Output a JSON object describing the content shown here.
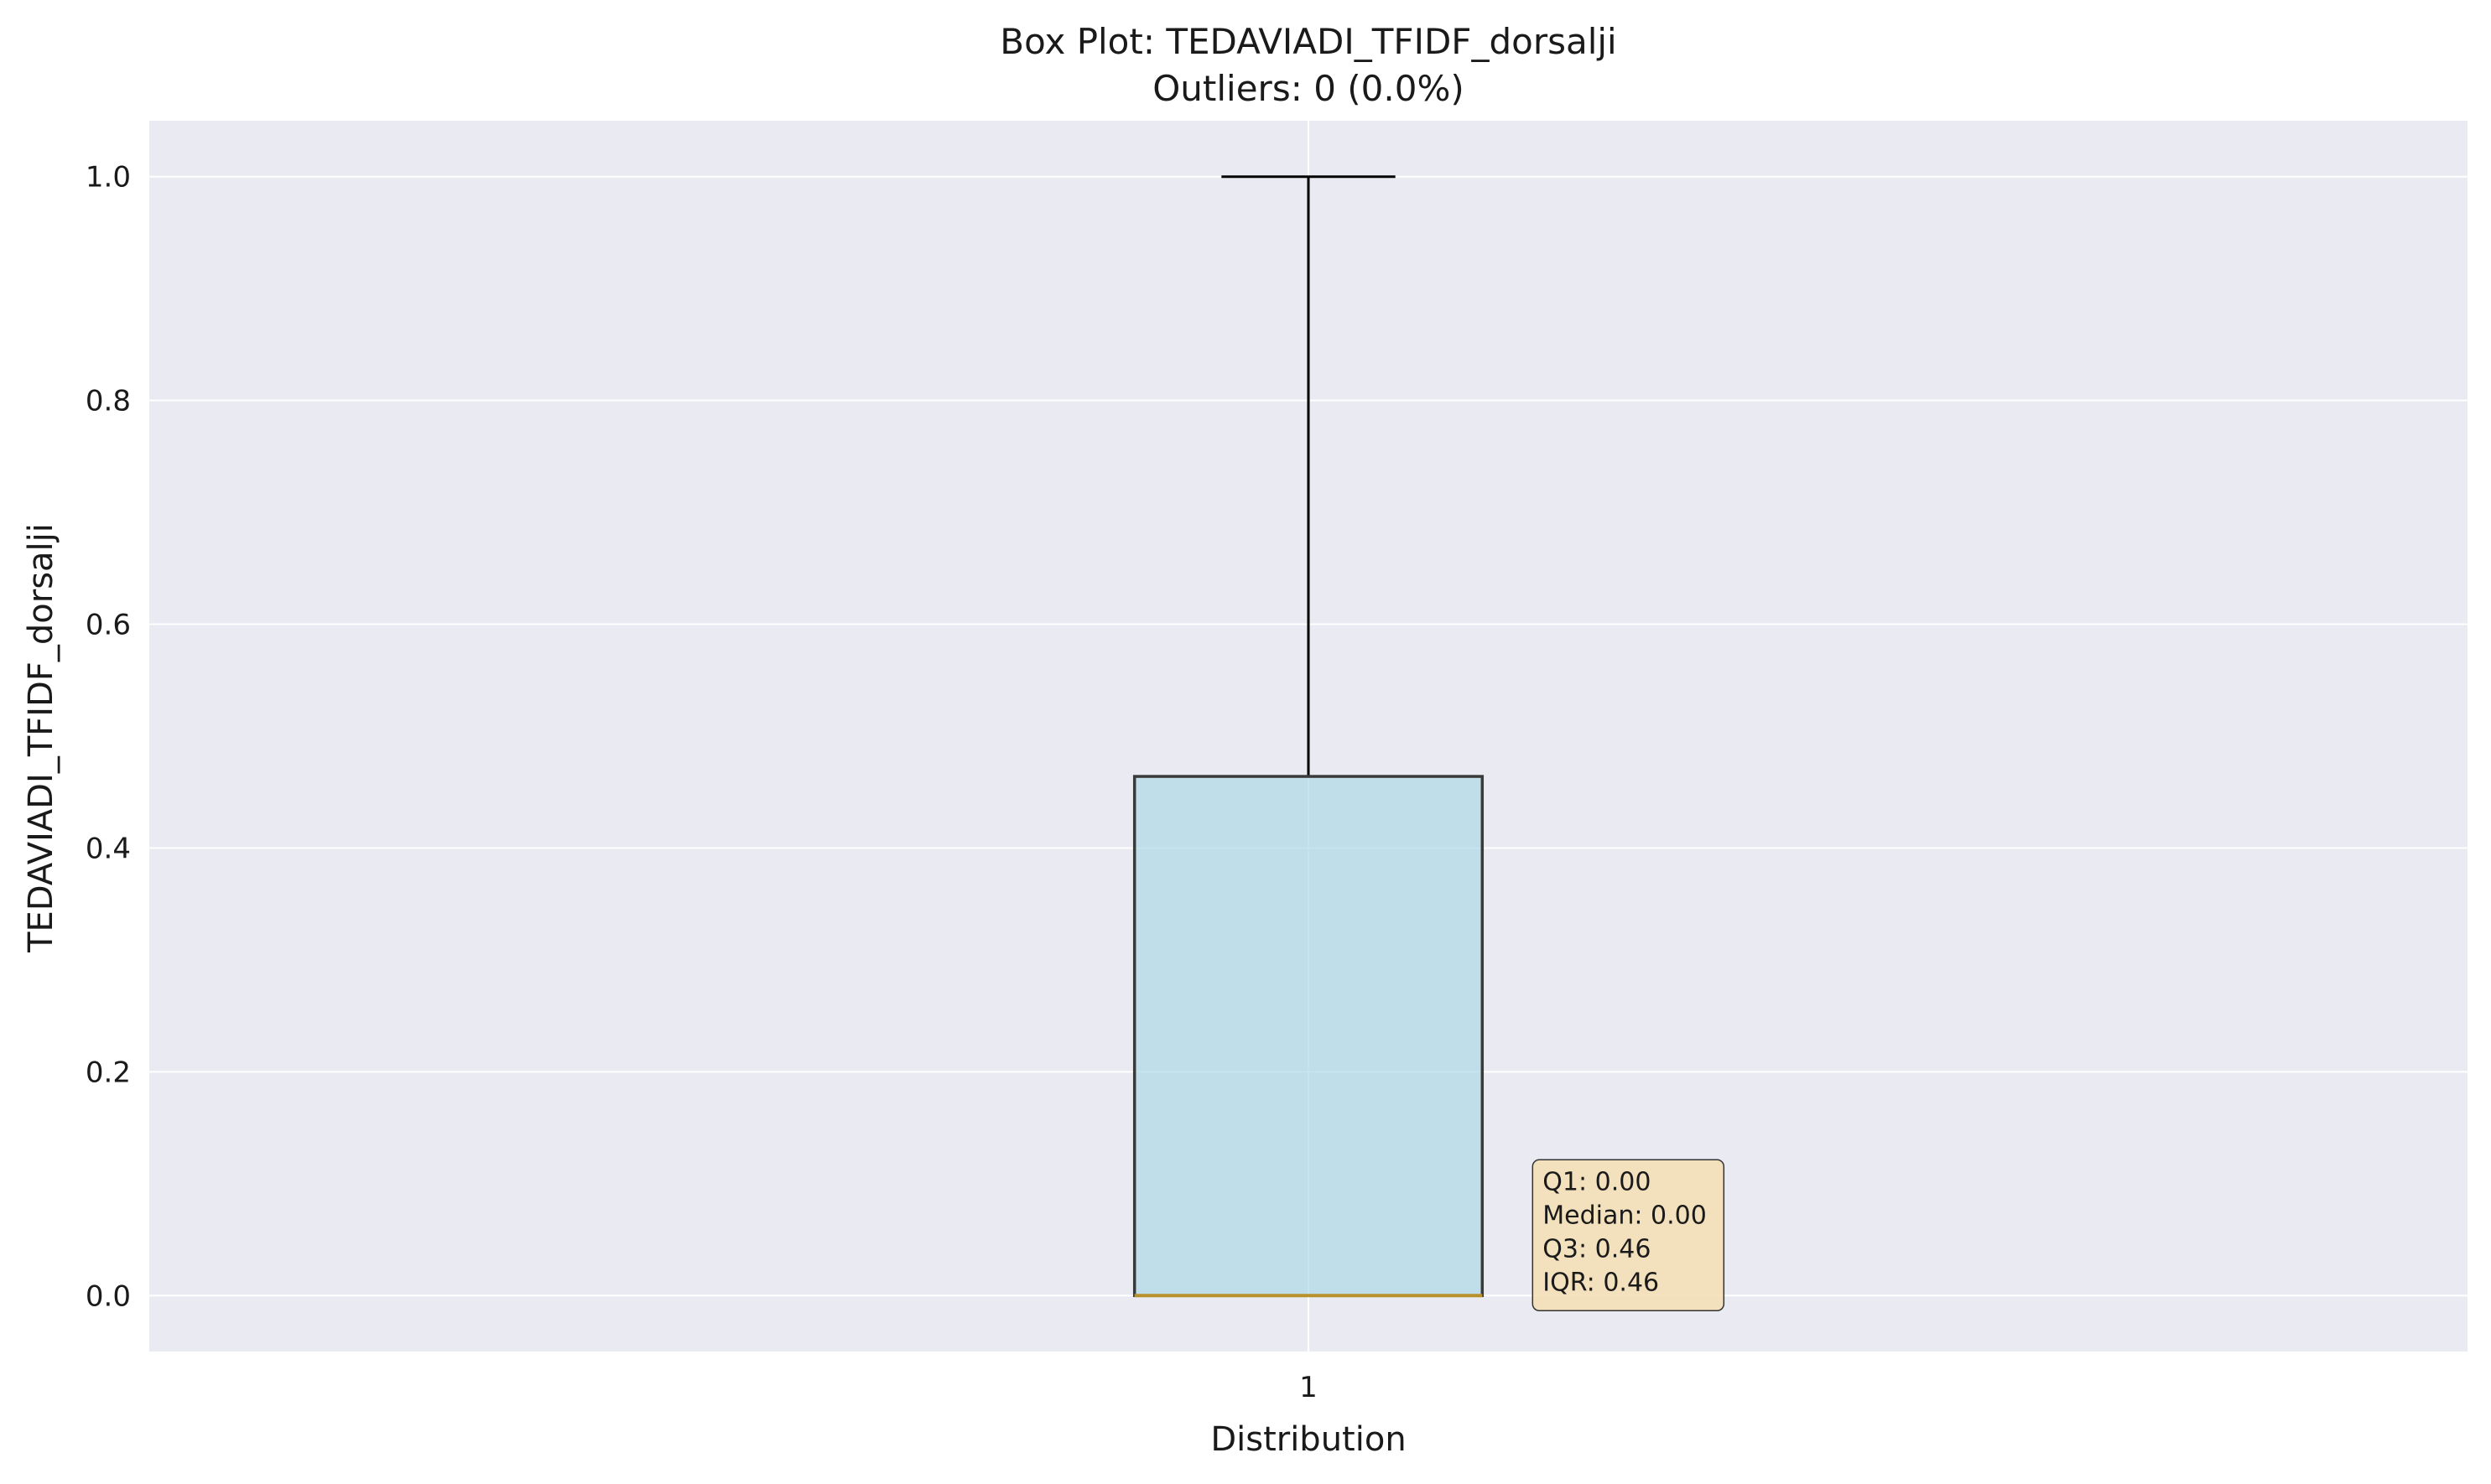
{
  "chart_data": {
    "type": "box",
    "title": "Box Plot: TEDAVIADI_TFIDF_dorsalji",
    "subtitle": "Outliers: 0 (0.0%)",
    "xlabel": "Distribution",
    "ylabel": "TEDAVIADI_TFIDF_dorsalji",
    "ylim": [
      -0.05,
      1.05
    ],
    "yticks": [
      "0.0",
      "0.2",
      "0.4",
      "0.6",
      "0.8",
      "1.0"
    ],
    "xticks": [
      "1"
    ],
    "grid": true,
    "boxes": [
      {
        "category": "1",
        "whisker_low": 0.0,
        "q1": 0.0,
        "median": 0.0,
        "q3": 0.464,
        "whisker_high": 1.0,
        "outliers": []
      }
    ],
    "stats_box": {
      "lines": [
        "Q1: 0.00",
        "Median: 0.00",
        "Q3: 0.46",
        "IQR: 0.46"
      ]
    },
    "colors": {
      "plot_background": "#eaeaf2",
      "grid": "#ffffff",
      "box_fill": "#add8e6",
      "box_edge": "#3a3a3a",
      "median": "#b8912a",
      "whisker": "#000000",
      "stats_fill": "#f5deb3"
    }
  }
}
